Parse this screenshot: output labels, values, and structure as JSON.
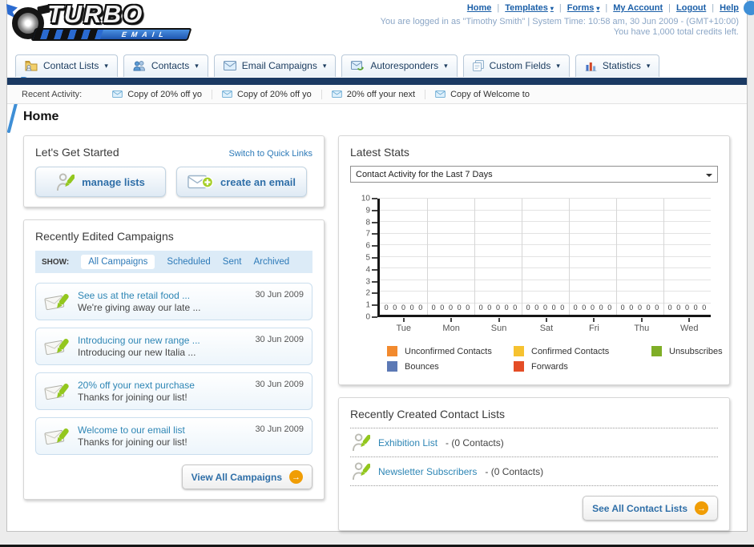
{
  "glyphs": {
    "caret": "▾",
    "pipe": "|",
    "arrow": "→"
  },
  "header": {
    "logo_title": "TURBO",
    "logo_subtitle": "EMAIL",
    "nav_links": [
      {
        "label": "Home"
      },
      {
        "label": "Templates"
      },
      {
        "label": "Forms"
      },
      {
        "label": "My Account"
      },
      {
        "label": "Logout"
      },
      {
        "label": "Help"
      }
    ],
    "status_line1": "You are logged in as \"Timothy Smith\" | System Time: 10:58 am, 30 Jun 2009 - (GMT+10:00)",
    "status_line2": "You have 1,000 total credits left."
  },
  "main_nav": {
    "tabs": [
      {
        "label": "Contact Lists"
      },
      {
        "label": "Contacts"
      },
      {
        "label": "Email Campaigns"
      },
      {
        "label": "Autoresponders"
      },
      {
        "label": "Custom Fields"
      },
      {
        "label": "Statistics"
      }
    ]
  },
  "recent_activity": {
    "label": "Recent Activity:",
    "items": [
      "Copy of 20% off yo",
      "Copy of 20% off yo",
      "20% off your next",
      "Copy of Welcome to"
    ]
  },
  "page_title": "Home",
  "get_started": {
    "title": "Let's Get Started",
    "switch_link": "Switch to Quick Links",
    "manage_lists_label": "manage lists",
    "create_email_label": "create an email"
  },
  "campaigns": {
    "title": "Recently Edited Campaigns",
    "show_label": "SHOW:",
    "filters": [
      "All Campaigns",
      "Scheduled",
      "Sent",
      "Archived"
    ],
    "active_filter": "All Campaigns",
    "view_all_label": "View All Campaigns",
    "items": [
      {
        "title": "See us at the retail food ...",
        "subtitle": "We're giving away our late ...",
        "date": "30 Jun 2009"
      },
      {
        "title": "Introducing our new range ...",
        "subtitle": "Introducing our new Italia ...",
        "date": "30 Jun 2009"
      },
      {
        "title": "20% off your next purchase",
        "subtitle": "Thanks for joining our list!",
        "date": "30 Jun 2009"
      },
      {
        "title": "Welcome to our email list",
        "subtitle": "Thanks for joining our list!",
        "date": "30 Jun 2009"
      }
    ]
  },
  "latest_stats": {
    "title": "Latest Stats",
    "selected_option": "Contact Activity for the Last 7 Days"
  },
  "chart_data": {
    "type": "bar",
    "title": "Contact Activity for the Last 7 Days",
    "categories": [
      "Tue",
      "Mon",
      "Sun",
      "Sat",
      "Fri",
      "Thu",
      "Wed"
    ],
    "series": [
      {
        "name": "Unconfirmed Contacts",
        "color": "#f28a2e",
        "values": [
          0,
          0,
          0,
          0,
          0,
          0,
          0
        ]
      },
      {
        "name": "Confirmed Contacts",
        "color": "#f6c230",
        "values": [
          0,
          0,
          0,
          0,
          0,
          0,
          0
        ]
      },
      {
        "name": "Unsubscribes",
        "color": "#7fae27",
        "values": [
          0,
          0,
          0,
          0,
          0,
          0,
          0
        ]
      },
      {
        "name": "Bounces",
        "color": "#5c79b5",
        "values": [
          0,
          0,
          0,
          0,
          0,
          0,
          0
        ]
      },
      {
        "name": "Forwards",
        "color": "#e44d26",
        "values": [
          0,
          0,
          0,
          0,
          0,
          0,
          0
        ]
      }
    ],
    "ylim": [
      0,
      10
    ],
    "ytick_step": 1,
    "grid": true,
    "legend_position": "bottom"
  },
  "contact_lists": {
    "title": "Recently Created Contact Lists",
    "items": [
      {
        "name": "Exhibition List",
        "count_suffix": "- (0 Contacts)"
      },
      {
        "name": "Newsletter Subscribers",
        "count_suffix": "- (0 Contacts)"
      }
    ],
    "see_all_label": "See All Contact Lists"
  }
}
